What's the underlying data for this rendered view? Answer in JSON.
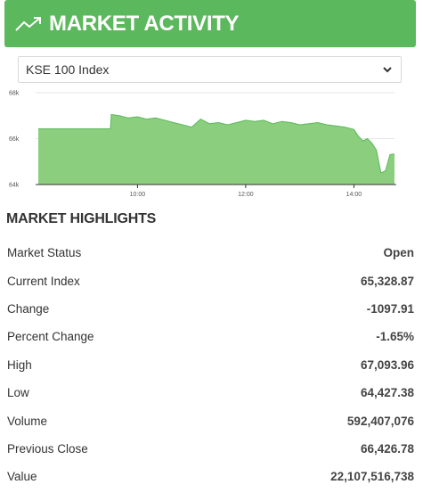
{
  "header": {
    "title": "MARKET ACTIVITY",
    "icon": "trending-up-icon"
  },
  "index_select": {
    "selected": "KSE 100 Index"
  },
  "chart_data": {
    "type": "area",
    "title": "",
    "xlabel": "",
    "ylabel": "",
    "ylim": [
      64000,
      68000
    ],
    "yticks": [
      "64k",
      "66k",
      "68k"
    ],
    "xticks": [
      "10:00",
      "12:00",
      "14:00"
    ],
    "xlim": [
      "08:10",
      "14:45"
    ],
    "grid": true,
    "color": "#8bcf7e",
    "line_color": "#5cb85c",
    "series": [
      {
        "x": [
          "08:10",
          "09:30",
          "09:31",
          "09:40",
          "09:50",
          "10:00",
          "10:10",
          "10:20",
          "10:30",
          "10:40",
          "10:50",
          "11:00",
          "11:10",
          "11:20",
          "11:30",
          "11:40",
          "11:50",
          "12:00",
          "12:10",
          "12:20",
          "12:30",
          "12:40",
          "12:50",
          "13:00",
          "13:10",
          "13:20",
          "13:30",
          "13:40",
          "13:50",
          "14:00",
          "14:05",
          "14:10",
          "14:15",
          "14:20",
          "14:25",
          "14:30",
          "14:35",
          "14:40",
          "14:45"
        ],
        "values": [
          66426,
          66426,
          67050,
          67000,
          66900,
          66950,
          66850,
          66900,
          66800,
          66700,
          66600,
          66500,
          66850,
          66650,
          66700,
          66600,
          66700,
          66800,
          66750,
          66800,
          66650,
          66750,
          66700,
          66600,
          66650,
          66700,
          66600,
          66550,
          66500,
          66400,
          66100,
          65900,
          66000,
          65800,
          65500,
          64500,
          64600,
          65300,
          65328
        ]
      }
    ]
  },
  "highlights": {
    "title": "MARKET HIGHLIGHTS",
    "rows": [
      {
        "label": "Market Status",
        "value": "Open"
      },
      {
        "label": "Current Index",
        "value": "65,328.87"
      },
      {
        "label": "Change",
        "value": "-1097.91"
      },
      {
        "label": "Percent Change",
        "value": "-1.65%"
      },
      {
        "label": "High",
        "value": "67,093.96"
      },
      {
        "label": "Low",
        "value": "64,427.38"
      },
      {
        "label": "Volume",
        "value": "592,407,076"
      },
      {
        "label": "Previous Close",
        "value": "66,426.78"
      },
      {
        "label": "Value",
        "value": "22,107,516,738"
      }
    ]
  }
}
